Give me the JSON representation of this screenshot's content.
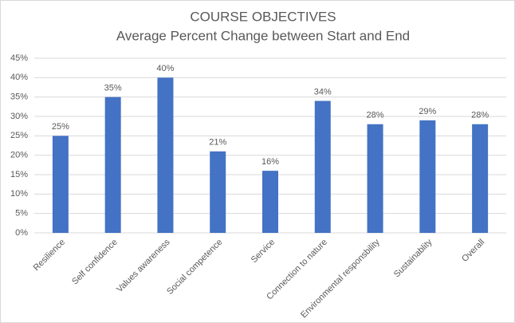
{
  "chart_data": {
    "type": "bar",
    "title": "COURSE OBJECTIVES",
    "subtitle": "Average Percent Change between Start and End",
    "categories": [
      "Resilience",
      "Self confidence",
      "Values awareness",
      "Social competence",
      "Service",
      "Connection to nature",
      "Environmental responsbility",
      "Sustainablity",
      "Overall"
    ],
    "values": [
      25,
      35,
      40,
      21,
      16,
      34,
      28,
      29,
      28
    ],
    "value_labels": [
      "25%",
      "35%",
      "40%",
      "21%",
      "16%",
      "34%",
      "28%",
      "29%",
      "28%"
    ],
    "color": "#4472c4",
    "ylim": [
      0,
      45
    ],
    "yticks": [
      {
        "value": 0,
        "label": "0%"
      },
      {
        "value": 5,
        "label": "5%"
      },
      {
        "value": 10,
        "label": "10%"
      },
      {
        "value": 15,
        "label": "15%"
      },
      {
        "value": 20,
        "label": "20%"
      },
      {
        "value": 25,
        "label": "25%"
      },
      {
        "value": 30,
        "label": "30%"
      },
      {
        "value": 35,
        "label": "35%"
      },
      {
        "value": 40,
        "label": "40%"
      },
      {
        "value": 45,
        "label": "45%"
      }
    ],
    "grid": true
  }
}
